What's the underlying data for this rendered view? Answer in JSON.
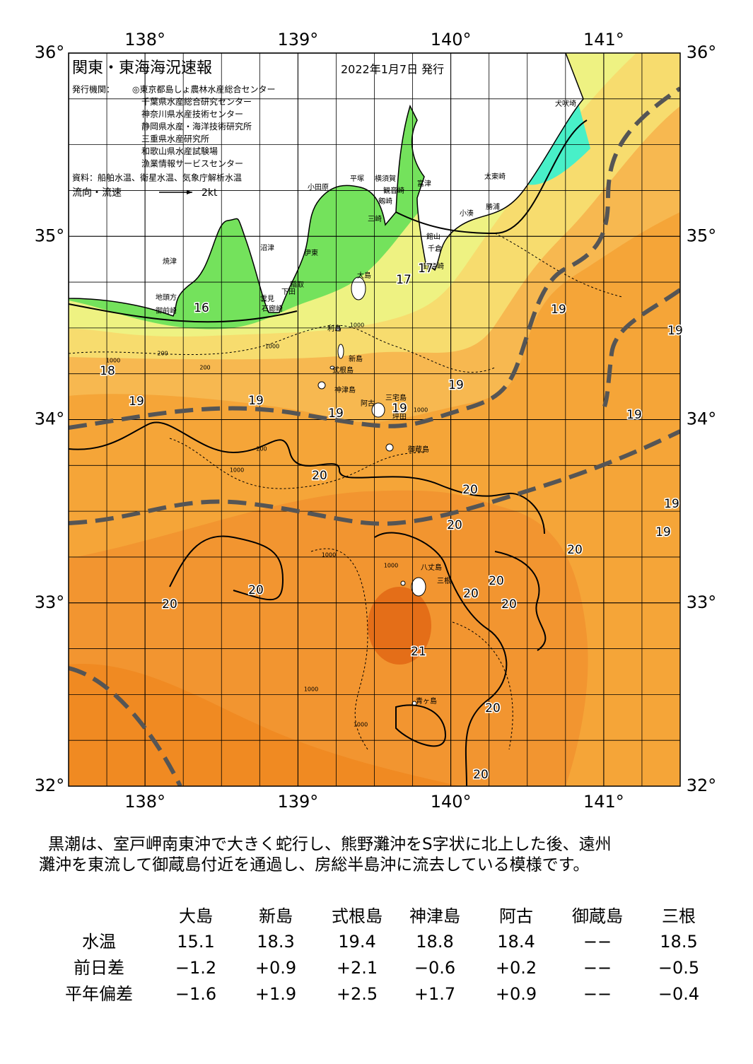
{
  "map": {
    "title": "関東・東海海況速報",
    "date": "2022年1月7日 発行",
    "issuer_label": "発行機関：",
    "issuers": [
      "◎東京都島しょ農林水産総合センター",
      "千葉県水産総合研究センター",
      "神奈川県水産技術センター",
      "静岡県水産・海洋技術研究所",
      "三重県水産研究所",
      "和歌山県水産試験場",
      "漁業情報サービスセンター"
    ],
    "source": "資料：船舶水温、衛星水温、気象庁解析水温",
    "legend": {
      "label": "流向・流速",
      "scale": "2kt"
    },
    "lonlim": [
      137.5,
      141.5
    ],
    "latlim": [
      32,
      36
    ],
    "lon_ticks": [
      {
        "value": 138,
        "label": "138°"
      },
      {
        "value": 139,
        "label": "139°"
      },
      {
        "value": 140,
        "label": "140°"
      },
      {
        "value": 141,
        "label": "141°"
      }
    ],
    "lat_ticks": [
      {
        "value": 32,
        "label": "32°"
      },
      {
        "value": 33,
        "label": "33°"
      },
      {
        "value": 34,
        "label": "34°"
      },
      {
        "value": 35,
        "label": "35°"
      },
      {
        "value": 36,
        "label": "36°"
      }
    ],
    "places": [
      "犬吠埼",
      "太東崎",
      "勝浦",
      "小湊",
      "富津",
      "横須賀",
      "観音崎",
      "平塚",
      "小田原",
      "剱崎",
      "三崎",
      "館山",
      "千倉",
      "野島崎",
      "伊東",
      "沼津",
      "焼津",
      "稲取",
      "下田",
      "雲見",
      "石廊崎",
      "地頭方",
      "御前崎",
      "大島",
      "利島",
      "新島",
      "式根島",
      "神津島",
      "三宅島",
      "阿古",
      "坪田",
      "御蔵島",
      "八丈島",
      "三根",
      "青ヶ島"
    ],
    "contour_labels": [
      "16",
      "17",
      "17",
      "19",
      "19",
      "18",
      "19",
      "19",
      "19",
      "19",
      "19",
      "19",
      "20",
      "20",
      "19",
      "20",
      "19",
      "20",
      "20",
      "20",
      "20",
      "20",
      "20",
      "21",
      "20",
      "20"
    ],
    "depth_labels": [
      "1000",
      "200",
      "1000",
      "200",
      "1000",
      "1000",
      "200",
      "1000",
      "1000",
      "1000",
      "1000",
      "1000"
    ]
  },
  "summary": [
    "黒潮は、室戸岬南東沖で大きく蛇行し、熊野灘沖をS字状に北上した後、遠州",
    "灘沖を東流して御蔵島付近を通過し、房総半島沖に流去している模様です。"
  ],
  "table": {
    "columns": [
      "大島",
      "新島",
      "式根島",
      "神津島",
      "阿古",
      "御蔵島",
      "三根"
    ],
    "rows": [
      {
        "label": "水温",
        "cells": [
          "15.1",
          "18.3",
          "19.4",
          "18.8",
          "18.4",
          "−−",
          "18.5"
        ]
      },
      {
        "label": "前日差",
        "cells": [
          "−1.2",
          "+0.9",
          "+2.1",
          "−0.6",
          "+0.2",
          "−−",
          "−0.5"
        ]
      },
      {
        "label": "平年偏差",
        "cells": [
          "−1.6",
          "+1.9",
          "+2.5",
          "+1.7",
          "+0.9",
          "−−",
          "−0.4"
        ]
      }
    ]
  }
}
